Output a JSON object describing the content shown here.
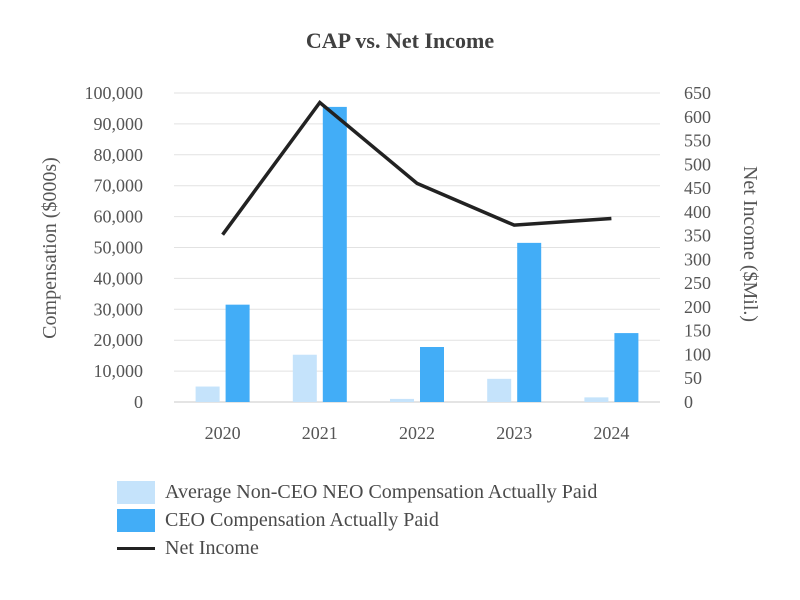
{
  "chart_data": {
    "type": "bar+line",
    "title": "CAP vs. Net Income",
    "categories": [
      "2020",
      "2021",
      "2022",
      "2023",
      "2024"
    ],
    "series": [
      {
        "name": "Average Non-CEO NEO Compensation Actually Paid",
        "type": "bar",
        "axis": "left",
        "color": "#c5e3fb",
        "values": [
          5000,
          15300,
          1000,
          7500,
          1500
        ]
      },
      {
        "name": "CEO Compensation Actually Paid",
        "type": "bar",
        "axis": "left",
        "color": "#42adf7",
        "values": [
          31500,
          95500,
          17800,
          51500,
          22300
        ]
      },
      {
        "name": "Net Income",
        "type": "line",
        "axis": "right",
        "color": "#222222",
        "values": [
          352,
          630,
          460,
          372,
          386
        ]
      }
    ],
    "ylabel": "Compensation ($000s)",
    "y2label": "Net Income ($Mil.)",
    "ylim": [
      0,
      100000
    ],
    "y2lim": [
      0,
      650
    ],
    "yticks": [
      "0",
      "10,000",
      "20,000",
      "30,000",
      "40,000",
      "50,000",
      "60,000",
      "70,000",
      "80,000",
      "90,000",
      "100,000"
    ],
    "y2ticks": [
      "0",
      "50",
      "100",
      "150",
      "200",
      "250",
      "300",
      "350",
      "400",
      "450",
      "500",
      "550",
      "600",
      "650"
    ],
    "grid": true,
    "legend_position": "bottom"
  }
}
